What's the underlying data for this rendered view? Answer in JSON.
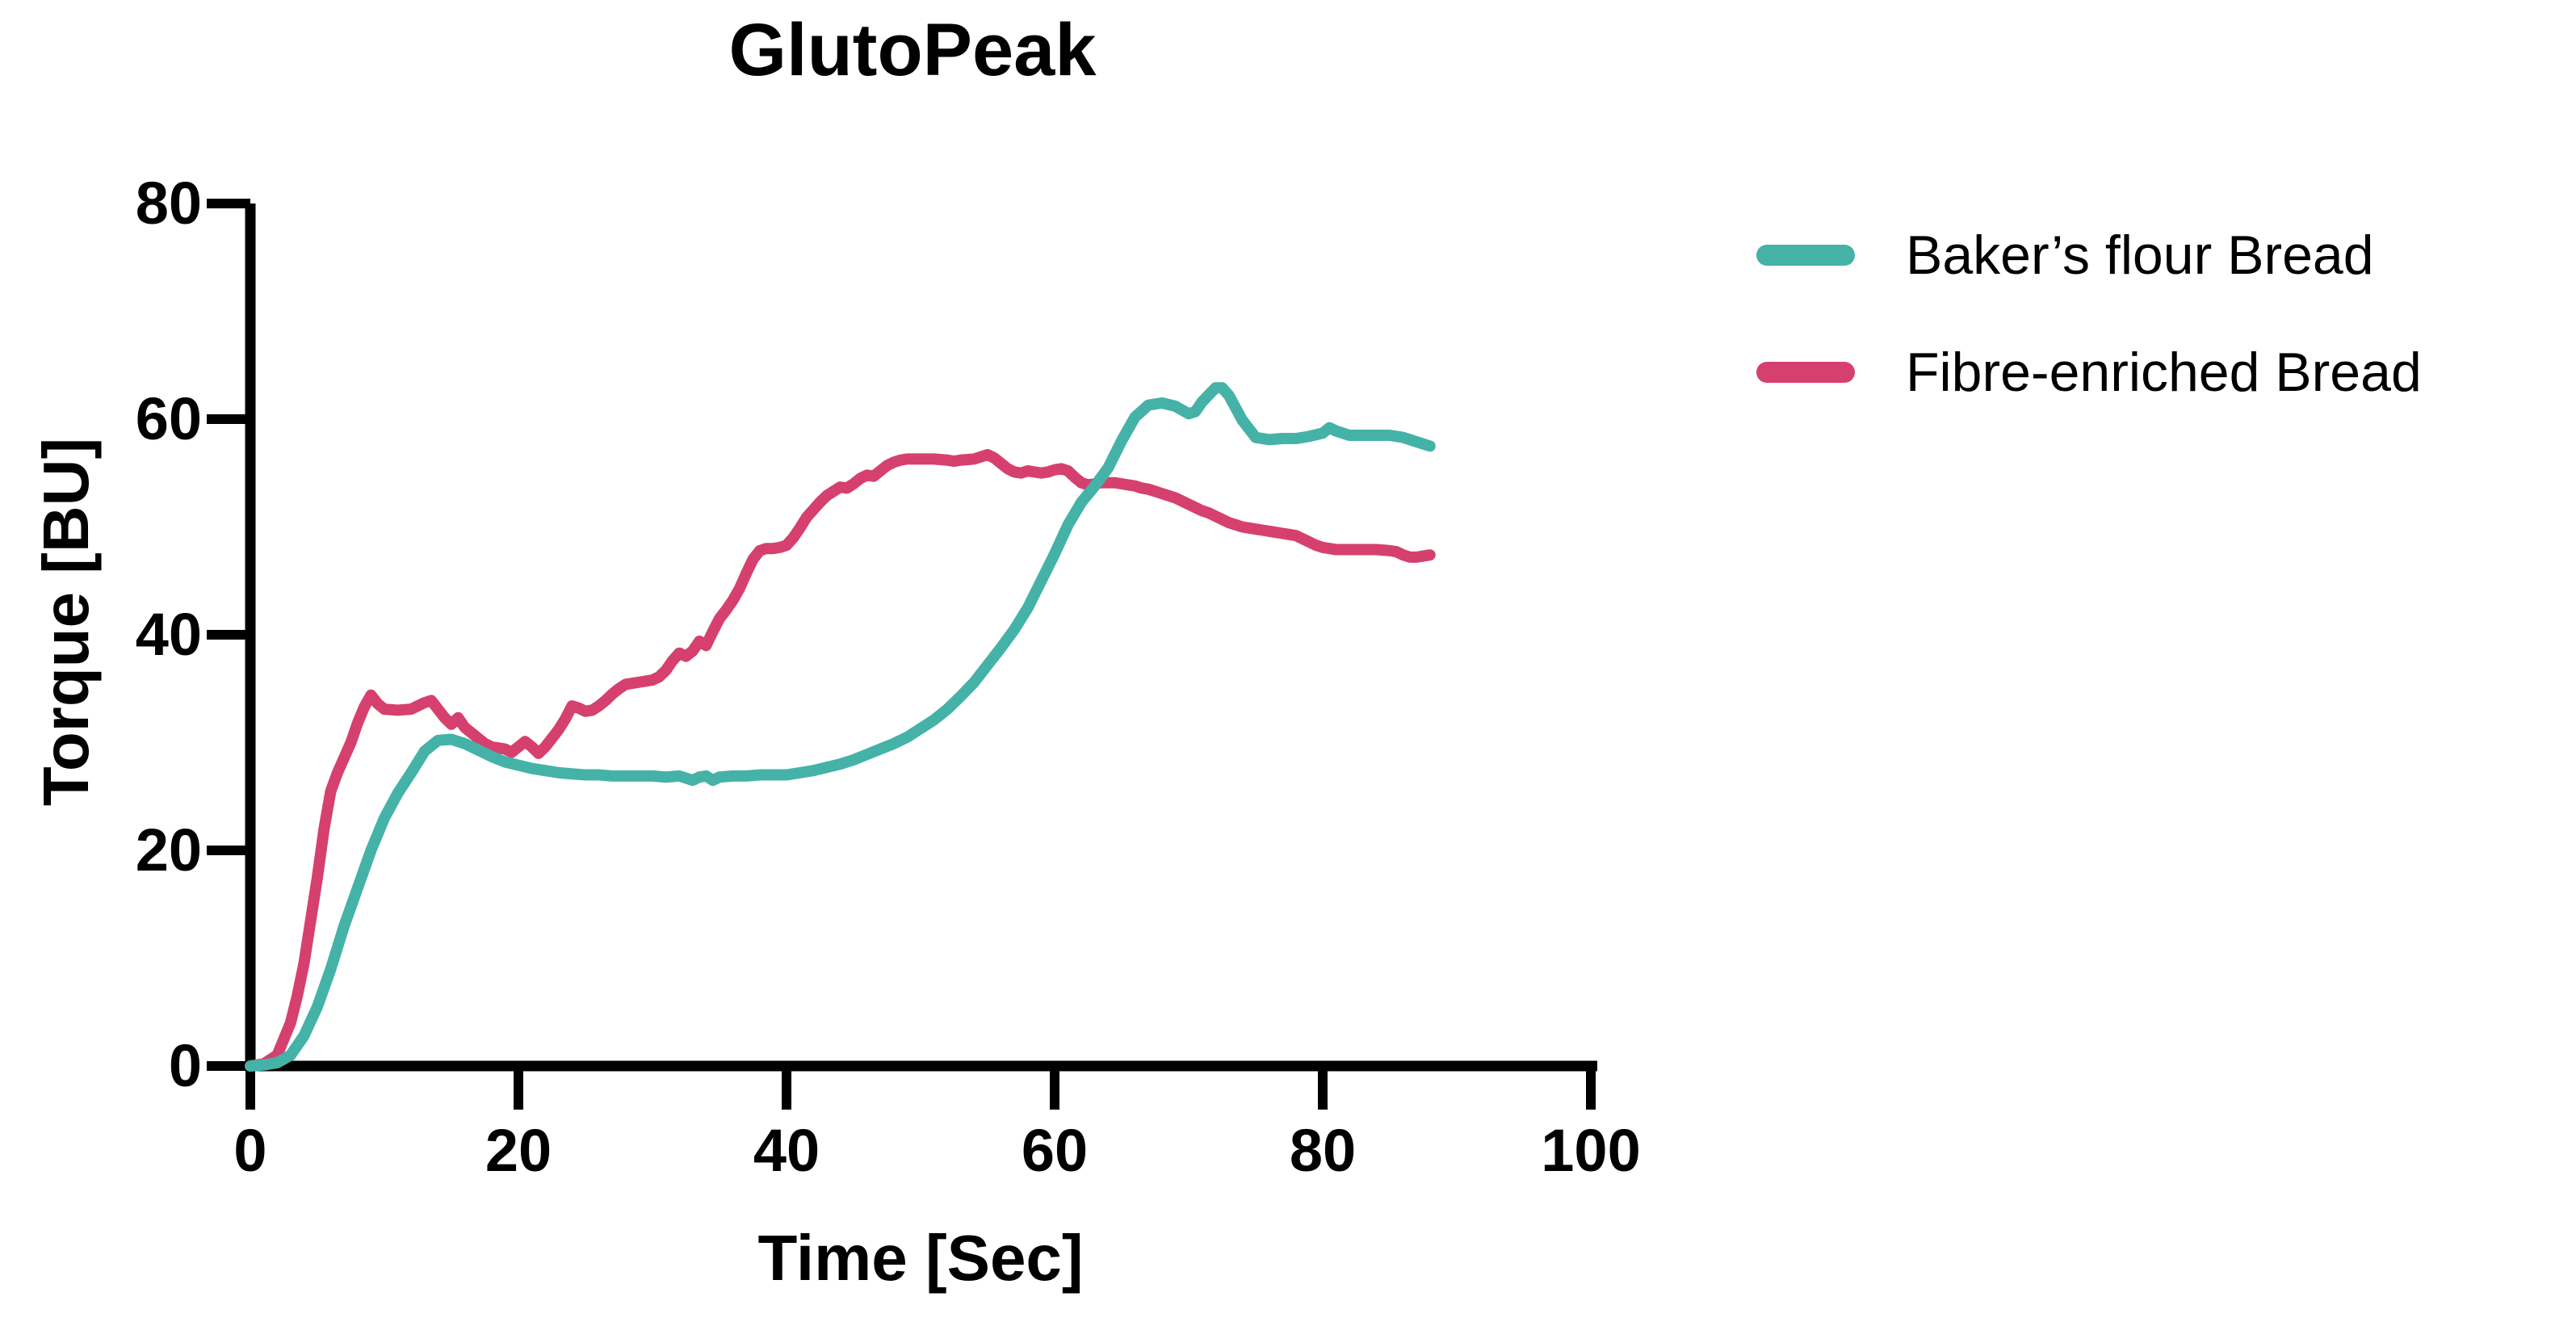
{
  "chart_data": {
    "type": "line",
    "title": "GlutoPeak",
    "xlabel": "Time [Sec]",
    "ylabel": "Torque [BU]",
    "xlim": [
      0,
      100
    ],
    "ylim": [
      0,
      80
    ],
    "xticks": [
      0,
      20,
      40,
      60,
      80,
      100
    ],
    "yticks": [
      0,
      20,
      40,
      60,
      80
    ],
    "grid": false,
    "legend_position": "right",
    "axis_color": "#000000",
    "series": [
      {
        "name": "Fibre-enriched Bread",
        "color": "#d6406e",
        "points": [
          [
            0,
            0
          ],
          [
            1,
            0.2
          ],
          [
            2,
            1
          ],
          [
            3,
            4
          ],
          [
            3.5,
            6.5
          ],
          [
            4,
            9.5
          ],
          [
            4.5,
            13.5
          ],
          [
            5,
            17.5
          ],
          [
            5.5,
            22
          ],
          [
            6,
            25.5
          ],
          [
            6.5,
            27.2
          ],
          [
            7,
            28.6
          ],
          [
            7.5,
            30
          ],
          [
            8,
            31.8
          ],
          [
            8.5,
            33.3
          ],
          [
            9,
            34.4
          ],
          [
            9.5,
            33.6
          ],
          [
            10,
            33.1
          ],
          [
            11,
            33
          ],
          [
            12,
            33.1
          ],
          [
            12.5,
            33.4
          ],
          [
            13,
            33.7
          ],
          [
            13.5,
            33.9
          ],
          [
            14,
            33.1
          ],
          [
            14.5,
            32.3
          ],
          [
            15,
            31.7
          ],
          [
            15.5,
            32.3
          ],
          [
            16,
            31.4
          ],
          [
            16.5,
            30.9
          ],
          [
            17,
            30.4
          ],
          [
            17.5,
            29.9
          ],
          [
            18,
            29.6
          ],
          [
            19,
            29.4
          ],
          [
            19.5,
            29.1
          ],
          [
            20,
            29.6
          ],
          [
            20.5,
            30.1
          ],
          [
            21,
            29.6
          ],
          [
            21.5,
            29
          ],
          [
            22,
            29.6
          ],
          [
            22.5,
            30.4
          ],
          [
            23,
            31.2
          ],
          [
            23.5,
            32.2
          ],
          [
            24,
            33.4
          ],
          [
            24.5,
            33.2
          ],
          [
            25,
            32.9
          ],
          [
            25.5,
            33
          ],
          [
            26,
            33.4
          ],
          [
            26.5,
            33.9
          ],
          [
            27,
            34.5
          ],
          [
            27.5,
            35
          ],
          [
            28,
            35.4
          ],
          [
            29,
            35.6
          ],
          [
            30,
            35.8
          ],
          [
            30.5,
            36.1
          ],
          [
            31,
            36.7
          ],
          [
            31.5,
            37.6
          ],
          [
            32,
            38.3
          ],
          [
            32.5,
            38
          ],
          [
            33,
            38.5
          ],
          [
            33.5,
            39.4
          ],
          [
            34,
            39
          ],
          [
            34.5,
            40.3
          ],
          [
            35,
            41.5
          ],
          [
            35.5,
            42.3
          ],
          [
            36,
            43.2
          ],
          [
            36.5,
            44.3
          ],
          [
            37,
            45.7
          ],
          [
            37.5,
            47
          ],
          [
            38,
            47.8
          ],
          [
            38.5,
            48
          ],
          [
            39,
            48
          ],
          [
            39.5,
            48.1
          ],
          [
            40,
            48.3
          ],
          [
            40.5,
            49
          ],
          [
            41,
            49.9
          ],
          [
            41.5,
            50.9
          ],
          [
            42,
            51.6
          ],
          [
            42.5,
            52.3
          ],
          [
            43,
            52.9
          ],
          [
            43.5,
            53.3
          ],
          [
            44,
            53.7
          ],
          [
            44.5,
            53.6
          ],
          [
            45,
            54
          ],
          [
            45.5,
            54.5
          ],
          [
            46,
            54.8
          ],
          [
            46.5,
            54.7
          ],
          [
            47,
            55.2
          ],
          [
            47.5,
            55.7
          ],
          [
            48,
            56
          ],
          [
            48.5,
            56.2
          ],
          [
            49,
            56.3
          ],
          [
            50,
            56.3
          ],
          [
            51,
            56.3
          ],
          [
            52,
            56.2
          ],
          [
            52.5,
            56.1
          ],
          [
            53,
            56.2
          ],
          [
            54,
            56.3
          ],
          [
            54.5,
            56.5
          ],
          [
            55,
            56.7
          ],
          [
            55.5,
            56.4
          ],
          [
            56,
            55.9
          ],
          [
            56.5,
            55.4
          ],
          [
            57,
            55.1
          ],
          [
            57.5,
            55
          ],
          [
            58,
            55.2
          ],
          [
            58.5,
            55.1
          ],
          [
            59,
            55
          ],
          [
            59.5,
            55.1
          ],
          [
            60,
            55.3
          ],
          [
            60.5,
            55.4
          ],
          [
            61,
            55.2
          ],
          [
            61.5,
            54.6
          ],
          [
            62,
            54.1
          ],
          [
            62.5,
            53.9
          ],
          [
            63,
            54
          ],
          [
            63.5,
            54.1
          ],
          [
            64,
            54.1
          ],
          [
            64.5,
            54.1
          ],
          [
            65,
            54
          ],
          [
            65.5,
            53.9
          ],
          [
            66,
            53.8
          ],
          [
            66.5,
            53.6
          ],
          [
            67,
            53.5
          ],
          [
            67.5,
            53.3
          ],
          [
            68,
            53.1
          ],
          [
            68.5,
            52.9
          ],
          [
            69,
            52.7
          ],
          [
            69.5,
            52.4
          ],
          [
            70,
            52.1
          ],
          [
            70.5,
            51.8
          ],
          [
            71,
            51.5
          ],
          [
            71.5,
            51.3
          ],
          [
            72,
            51
          ],
          [
            72.5,
            50.7
          ],
          [
            73,
            50.4
          ],
          [
            73.5,
            50.2
          ],
          [
            74,
            50
          ],
          [
            74.5,
            49.9
          ],
          [
            75,
            49.8
          ],
          [
            75.5,
            49.7
          ],
          [
            76,
            49.6
          ],
          [
            76.5,
            49.5
          ],
          [
            77,
            49.4
          ],
          [
            77.5,
            49.3
          ],
          [
            78,
            49.2
          ],
          [
            78.5,
            48.9
          ],
          [
            79,
            48.6
          ],
          [
            79.5,
            48.3
          ],
          [
            80,
            48.1
          ],
          [
            80.5,
            48
          ],
          [
            81,
            47.9
          ],
          [
            82,
            47.9
          ],
          [
            83,
            47.9
          ],
          [
            84,
            47.9
          ],
          [
            85,
            47.8
          ],
          [
            85.5,
            47.7
          ],
          [
            86,
            47.4
          ],
          [
            86.5,
            47.2
          ],
          [
            87,
            47.2
          ],
          [
            87.5,
            47.3
          ],
          [
            88,
            47.4
          ]
        ]
      },
      {
        "name": "Baker’s flour Bread",
        "color": "#45b2a7",
        "points": [
          [
            0,
            0
          ],
          [
            1,
            0.1
          ],
          [
            2,
            0.3
          ],
          [
            3,
            1
          ],
          [
            4,
            2.8
          ],
          [
            5,
            5.5
          ],
          [
            6,
            9
          ],
          [
            7,
            13
          ],
          [
            8,
            16.5
          ],
          [
            9,
            20
          ],
          [
            10,
            23
          ],
          [
            11,
            25.3
          ],
          [
            12,
            27.2
          ],
          [
            13,
            29.2
          ],
          [
            14,
            30.2
          ],
          [
            15,
            30.3
          ],
          [
            16,
            29.9
          ],
          [
            17,
            29.3
          ],
          [
            18,
            28.7
          ],
          [
            19,
            28.2
          ],
          [
            20,
            27.9
          ],
          [
            21,
            27.6
          ],
          [
            22,
            27.4
          ],
          [
            23,
            27.2
          ],
          [
            24,
            27.1
          ],
          [
            25,
            27
          ],
          [
            26,
            27
          ],
          [
            27,
            26.9
          ],
          [
            28,
            26.9
          ],
          [
            29,
            26.9
          ],
          [
            30,
            26.9
          ],
          [
            31,
            26.8
          ],
          [
            32,
            26.9
          ],
          [
            33,
            26.5
          ],
          [
            33.5,
            26.8
          ],
          [
            34,
            26.9
          ],
          [
            34.5,
            26.5
          ],
          [
            35,
            26.8
          ],
          [
            36,
            26.9
          ],
          [
            37,
            26.9
          ],
          [
            38,
            27
          ],
          [
            39,
            27
          ],
          [
            40,
            27
          ],
          [
            41,
            27.2
          ],
          [
            42,
            27.4
          ],
          [
            43,
            27.7
          ],
          [
            44,
            28
          ],
          [
            45,
            28.4
          ],
          [
            46,
            28.9
          ],
          [
            47,
            29.4
          ],
          [
            48,
            29.9
          ],
          [
            49,
            30.5
          ],
          [
            50,
            31.3
          ],
          [
            51,
            32.1
          ],
          [
            52,
            33.1
          ],
          [
            53,
            34.3
          ],
          [
            54,
            35.6
          ],
          [
            55,
            37.2
          ],
          [
            56,
            38.8
          ],
          [
            57,
            40.5
          ],
          [
            58,
            42.5
          ],
          [
            59,
            45
          ],
          [
            60,
            47.5
          ],
          [
            61,
            50.2
          ],
          [
            62,
            52.3
          ],
          [
            63,
            53.8
          ],
          [
            64,
            55.5
          ],
          [
            65,
            58
          ],
          [
            66,
            60.2
          ],
          [
            67,
            61.3
          ],
          [
            68,
            61.5
          ],
          [
            69,
            61.2
          ],
          [
            70,
            60.5
          ],
          [
            70.5,
            60.7
          ],
          [
            71,
            61.6
          ],
          [
            72,
            62.9
          ],
          [
            72.5,
            62.9
          ],
          [
            73,
            62.2
          ],
          [
            74,
            59.9
          ],
          [
            75,
            58.3
          ],
          [
            76,
            58.1
          ],
          [
            77,
            58.2
          ],
          [
            78,
            58.2
          ],
          [
            79,
            58.4
          ],
          [
            80,
            58.7
          ],
          [
            80.5,
            59.2
          ],
          [
            81,
            58.9
          ],
          [
            82,
            58.5
          ],
          [
            83,
            58.5
          ],
          [
            84,
            58.5
          ],
          [
            85,
            58.5
          ],
          [
            86,
            58.3
          ],
          [
            87,
            57.9
          ],
          [
            88,
            57.5
          ]
        ]
      }
    ],
    "legend": [
      {
        "label": "Baker’s flour Bread",
        "series": 1
      },
      {
        "label": "Fibre-enriched Bread",
        "series": 0
      }
    ]
  }
}
